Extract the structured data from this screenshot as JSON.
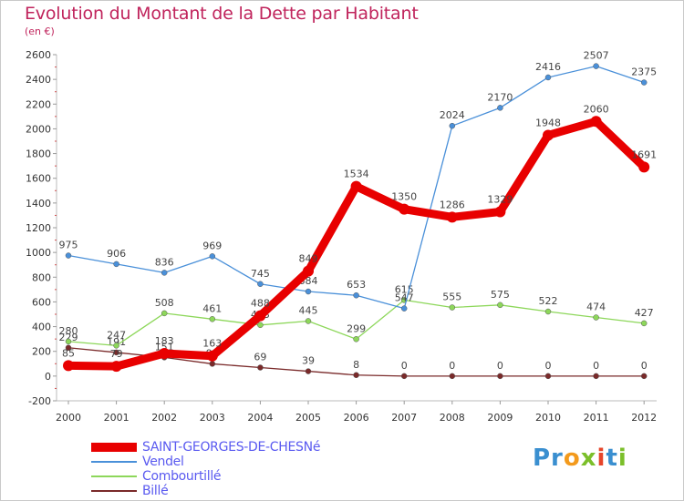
{
  "title": "Evolution du Montant de la Dette par Habitant",
  "subtitle": "(en €)",
  "chart_data": {
    "type": "line",
    "title": "Evolution du Montant de la Dette par Habitant",
    "subtitle": "(en €)",
    "x": [
      2000,
      2001,
      2002,
      2003,
      2004,
      2005,
      2006,
      2007,
      2008,
      2009,
      2010,
      2011,
      2012
    ],
    "ylim": [
      -200,
      2600
    ],
    "yticks": [
      -200,
      0,
      200,
      400,
      600,
      800,
      1000,
      1200,
      1400,
      1600,
      1800,
      2000,
      2200,
      2400,
      2600
    ],
    "grid": false,
    "legend_position": "bottom-left",
    "series": [
      {
        "name": "SAINT-GEORGES-DE-CHESNé",
        "color": "#e80000",
        "values": [
          85,
          79,
          183,
          163,
          488,
          849,
          1534,
          1350,
          1286,
          1329,
          1948,
          2060,
          1691
        ]
      },
      {
        "name": "Vendel",
        "color": "#4a90d9",
        "values": [
          975,
          906,
          836,
          969,
          745,
          684,
          653,
          547,
          2024,
          2170,
          2416,
          2507,
          2375
        ]
      },
      {
        "name": "Combourtillé",
        "color": "#8dd75a",
        "values": [
          280,
          247,
          508,
          461,
          413,
          445,
          299,
          615,
          555,
          575,
          522,
          474,
          427
        ]
      },
      {
        "name": "Billé",
        "color": "#7a2a2a",
        "values": [
          229,
          191,
          151,
          99,
          69,
          39,
          8,
          0,
          0,
          0,
          0,
          0,
          0
        ]
      }
    ]
  },
  "logo_text": "Proxiti"
}
